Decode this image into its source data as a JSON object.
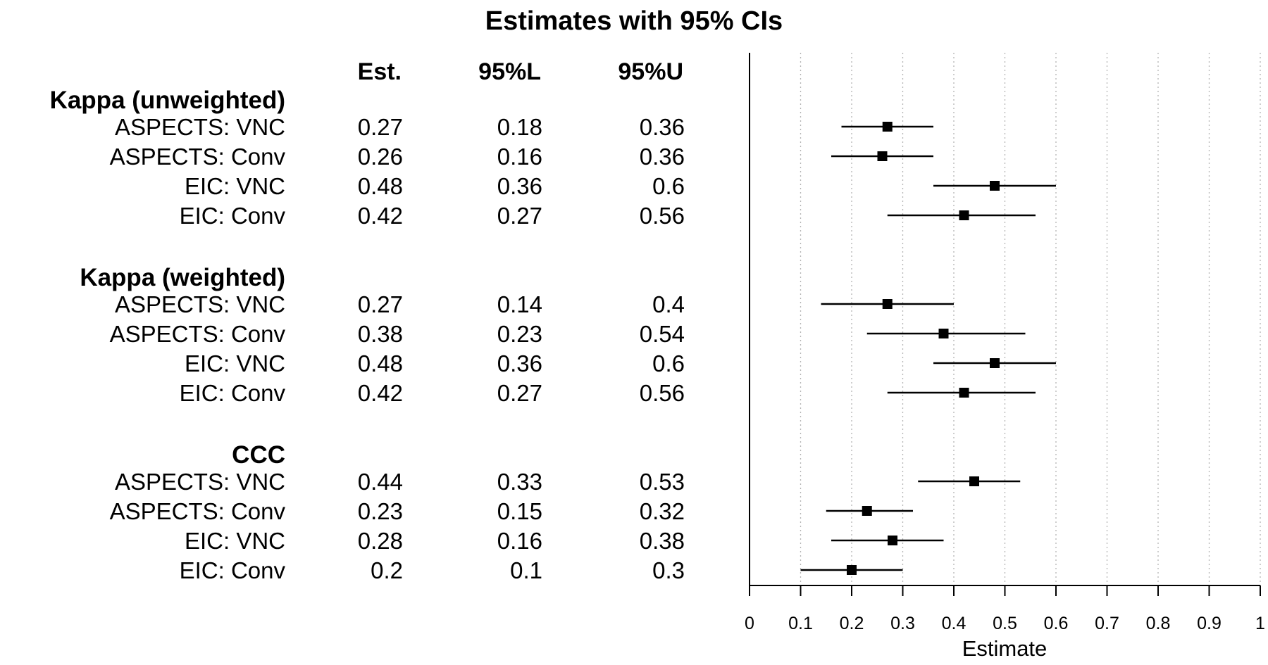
{
  "chart_data": {
    "type": "forest",
    "title": "Estimates with 95% CIs",
    "columns": [
      "Est.",
      "95%L",
      "95%U"
    ],
    "xlabel": "Estimate",
    "xlim": [
      0,
      1
    ],
    "xticks": [
      0,
      0.1,
      0.2,
      0.3,
      0.4,
      0.5,
      0.6,
      0.7,
      0.8,
      0.9,
      1
    ],
    "xtick_labels": [
      "0",
      "0.1",
      "0.2",
      "0.3",
      "0.4",
      "0.5",
      "0.6",
      "0.7",
      "0.8",
      "0.9",
      "1"
    ],
    "grid": "vertical dotted",
    "groups": [
      {
        "name": "Kappa (unweighted)",
        "rows": [
          {
            "label": "ASPECTS: VNC",
            "est": 0.27,
            "lower": 0.18,
            "upper": 0.36,
            "est_text": "0.27",
            "lower_text": "0.18",
            "upper_text": "0.36"
          },
          {
            "label": "ASPECTS: Conv",
            "est": 0.26,
            "lower": 0.16,
            "upper": 0.36,
            "est_text": "0.26",
            "lower_text": "0.16",
            "upper_text": "0.36"
          },
          {
            "label": "EIC: VNC",
            "est": 0.48,
            "lower": 0.36,
            "upper": 0.6,
            "est_text": "0.48",
            "lower_text": "0.36",
            "upper_text": "0.6"
          },
          {
            "label": "EIC: Conv",
            "est": 0.42,
            "lower": 0.27,
            "upper": 0.56,
            "est_text": "0.42",
            "lower_text": "0.27",
            "upper_text": "0.56"
          }
        ]
      },
      {
        "name": "Kappa (weighted)",
        "rows": [
          {
            "label": "ASPECTS: VNC",
            "est": 0.27,
            "lower": 0.14,
            "upper": 0.4,
            "est_text": "0.27",
            "lower_text": "0.14",
            "upper_text": "0.4"
          },
          {
            "label": "ASPECTS: Conv",
            "est": 0.38,
            "lower": 0.23,
            "upper": 0.54,
            "est_text": "0.38",
            "lower_text": "0.23",
            "upper_text": "0.54"
          },
          {
            "label": "EIC: VNC",
            "est": 0.48,
            "lower": 0.36,
            "upper": 0.6,
            "est_text": "0.48",
            "lower_text": "0.36",
            "upper_text": "0.6"
          },
          {
            "label": "EIC: Conv",
            "est": 0.42,
            "lower": 0.27,
            "upper": 0.56,
            "est_text": "0.42",
            "lower_text": "0.27",
            "upper_text": "0.56"
          }
        ]
      },
      {
        "name": "CCC",
        "rows": [
          {
            "label": "ASPECTS: VNC",
            "est": 0.44,
            "lower": 0.33,
            "upper": 0.53,
            "est_text": "0.44",
            "lower_text": "0.33",
            "upper_text": "0.53"
          },
          {
            "label": "ASPECTS: Conv",
            "est": 0.23,
            "lower": 0.15,
            "upper": 0.32,
            "est_text": "0.23",
            "lower_text": "0.15",
            "upper_text": "0.32"
          },
          {
            "label": "EIC: VNC",
            "est": 0.28,
            "lower": 0.16,
            "upper": 0.38,
            "est_text": "0.28",
            "lower_text": "0.16",
            "upper_text": "0.38"
          },
          {
            "label": "EIC: Conv",
            "est": 0.2,
            "lower": 0.1,
            "upper": 0.3,
            "est_text": "0.2",
            "lower_text": "0.1",
            "upper_text": "0.3"
          }
        ]
      }
    ]
  }
}
